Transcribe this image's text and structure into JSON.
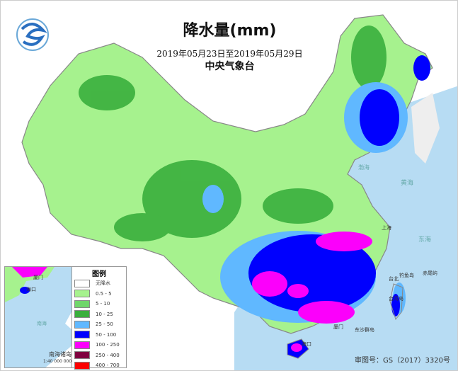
{
  "header": {
    "title": "降水量(mm)",
    "period": "2019年05月23日至2019年05月29日",
    "agency": "中央气象台",
    "logo_icon": "cma-logo-icon"
  },
  "legend": {
    "title": "图例",
    "items": [
      {
        "label": "无降水",
        "color": "#ffffff"
      },
      {
        "label": "0.5 - 5",
        "color": "#a6f28e"
      },
      {
        "label": "5 - 10",
        "color": "#6fd66a"
      },
      {
        "label": "10 - 25",
        "color": "#3aaf3d"
      },
      {
        "label": "25 - 50",
        "color": "#60b8ff"
      },
      {
        "label": "50 - 100",
        "color": "#0000fe"
      },
      {
        "label": "100 - 250",
        "color": "#fb00fb"
      },
      {
        "label": "250 - 400",
        "color": "#800040"
      },
      {
        "label": "400 - 700",
        "color": "#fc0000"
      }
    ]
  },
  "inset": {
    "name": "南海诸岛",
    "scale": "1:40 000 000",
    "labels": [
      "厦门",
      "海口",
      "南海"
    ]
  },
  "map_labels": {
    "taipei": "台北",
    "taiwan": "台湾岛",
    "diaoyu": "钓鱼岛",
    "chiwei": "赤尾屿",
    "dongsha": "东沙群岛",
    "donghai": "东海",
    "huanghai": "黄海",
    "bohai": "渤海",
    "shanghai": "上海",
    "haikou": "海口",
    "xiamen": "厦门"
  },
  "approval": "审图号：GS（2017）3320号",
  "colors": {
    "sea": "#b7dcf3",
    "border": "#888888"
  }
}
